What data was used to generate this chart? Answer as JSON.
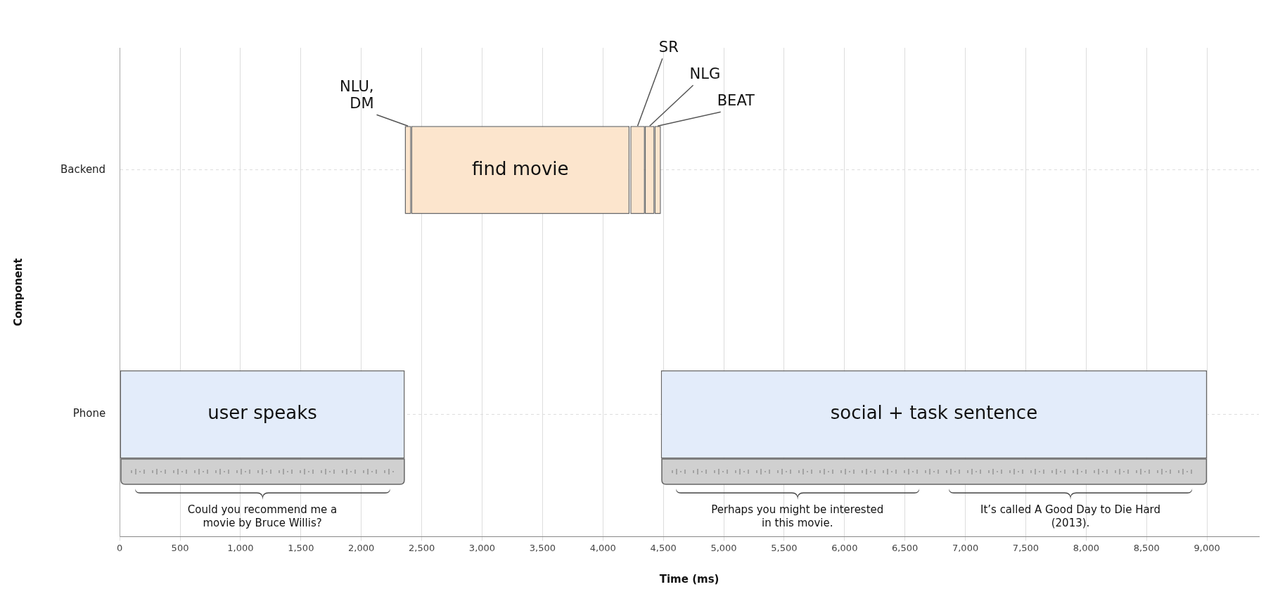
{
  "chart_data": {
    "type": "bar",
    "orientation": "horizontal",
    "xlabel": "Time (ms)",
    "ylabel": "Component",
    "categories": [
      "Backend",
      "Phone"
    ],
    "series": [
      {
        "name": "user speaks",
        "color": "#e3ecfa",
        "values": [
          null,
          2360
        ],
        "base": [
          null,
          0
        ]
      },
      {
        "name": "NLU, DM",
        "color": "#fce5cd",
        "values": [
          53,
          null
        ],
        "base": [
          2360,
          null
        ]
      },
      {
        "name": "find movie",
        "color": "#fce5cd",
        "values": [
          1807,
          null
        ],
        "base": [
          2413,
          null
        ]
      },
      {
        "name": "SR",
        "color": "#fce5cd",
        "values": [
          120,
          null
        ],
        "base": [
          4227,
          null
        ]
      },
      {
        "name": "NLG",
        "color": "#fce5cd",
        "values": [
          80,
          null
        ],
        "base": [
          4347,
          null
        ]
      },
      {
        "name": "BEAT",
        "color": "#fce5cd",
        "values": [
          53,
          null
        ],
        "base": [
          4427,
          null
        ]
      },
      {
        "name": "social + task sentence",
        "color": "#e3ecfa",
        "values": [
          null,
          4520
        ],
        "base": [
          null,
          4480
        ]
      }
    ],
    "xlim": [
      0,
      9430
    ],
    "xticks": [
      0,
      500,
      {
        "value": 1000,
        "label": "1,000"
      },
      {
        "value": 1500,
        "label": "1,500"
      },
      {
        "value": 2000,
        "label": "2,000"
      },
      {
        "value": 2500,
        "label": "2,500"
      },
      {
        "value": 3000,
        "label": "3,000"
      },
      {
        "value": 3500,
        "label": "3,500"
      },
      {
        "value": 4000,
        "label": "4,000"
      },
      {
        "value": 4500,
        "label": "4,500"
      },
      {
        "value": 5000,
        "label": "5,000"
      },
      {
        "value": 5500,
        "label": "5,500"
      },
      {
        "value": 6000,
        "label": "6,000"
      },
      {
        "value": 6500,
        "label": "6,500"
      },
      {
        "value": 7000,
        "label": "7,000"
      },
      {
        "value": 7500,
        "label": "7,500"
      },
      {
        "value": 8000,
        "label": "8,000"
      },
      {
        "value": 8500,
        "label": "8,500"
      },
      {
        "value": 9000,
        "label": "9,000"
      }
    ],
    "annotations": [
      "Could you recommend me a movie by Bruce Willis?",
      "Perhaps you might be interested in this movie.",
      "It’s called A Good Day to Die Hard (2013)."
    ],
    "grid": true,
    "legend": false
  }
}
